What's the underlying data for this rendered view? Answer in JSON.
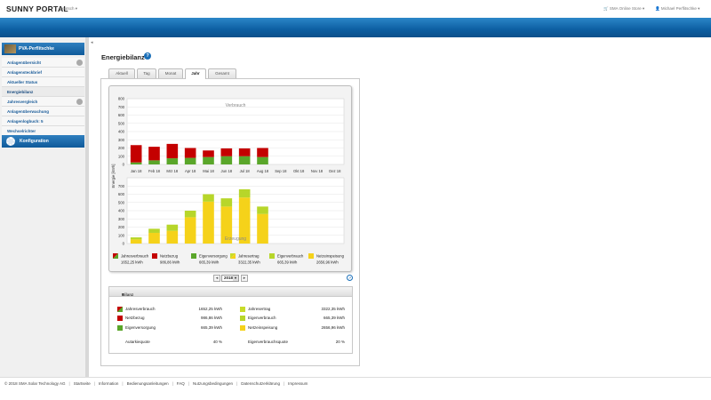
{
  "header": {
    "logo": "SUNNY PORTAL",
    "language": "Deutsch",
    "store_link": "SMA Online Store",
    "user_name": "Michael Perflitschke"
  },
  "sidebar": {
    "plant_name": "PVA-Perflitschke",
    "items": [
      {
        "label": "Anlagenübersicht",
        "gear": true
      },
      {
        "label": "Anlagensteckbrief",
        "gear": false
      },
      {
        "label": "Aktueller Status",
        "gear": false
      },
      {
        "label": "Energiebilanz",
        "gear": false,
        "active": true
      },
      {
        "label": "Jahresvergleich",
        "gear": true
      },
      {
        "label": "Anlagenüberwachung",
        "gear": false
      },
      {
        "label": "Anlagenlogbuch: 5",
        "gear": false
      },
      {
        "label": "Wechselrichter",
        "gear": false
      }
    ],
    "config_label": "Konfiguration"
  },
  "page": {
    "title": "Energiebilanz",
    "tabs": [
      "Aktuell",
      "Tag",
      "Monat",
      "Jahr",
      "Gesamt"
    ],
    "active_tab": "Jahr"
  },
  "year_nav": {
    "year": "2018",
    "prev": "◂",
    "next": "▸"
  },
  "chart_data": {
    "type": "bar",
    "categories": [
      "Jan 18",
      "Feb 18",
      "Mrz 18",
      "Apr 18",
      "Mai 18",
      "Jun 18",
      "Jul 18",
      "Aug 18",
      "Sep 18",
      "Okt 18",
      "Nov 18",
      "Dez 18"
    ],
    "ylabel": "Energie [kWh]",
    "top": {
      "title": "Verbrauch",
      "ylim": [
        0,
        800
      ],
      "yticks": [
        0,
        100,
        200,
        300,
        400,
        500,
        600,
        700,
        800
      ],
      "series": [
        {
          "name": "Eigenversorgung",
          "color": "#5aa62a",
          "values": [
            25,
            50,
            75,
            80,
            90,
            100,
            100,
            90,
            0,
            0,
            0,
            0
          ]
        },
        {
          "name": "Netzbezug",
          "color": "#c40000",
          "values": [
            210,
            165,
            175,
            120,
            80,
            95,
            95,
            110,
            0,
            0,
            0,
            0
          ]
        }
      ]
    },
    "bottom": {
      "title": "Erzeugung",
      "ylim": [
        0,
        800
      ],
      "yticks": [
        0,
        100,
        200,
        300,
        400,
        500,
        600,
        700
      ],
      "series": [
        {
          "name": "Netzeinspeisung",
          "color": "#f5d21a",
          "values": [
            50,
            130,
            155,
            320,
            510,
            450,
            560,
            360,
            0,
            0,
            0,
            0
          ]
        },
        {
          "name": "Eigenverbrauch",
          "color": "#b7d62a",
          "values": [
            25,
            50,
            75,
            80,
            90,
            100,
            100,
            90,
            0,
            0,
            0,
            0
          ]
        }
      ]
    },
    "legend": [
      {
        "label": "Jahresverbrauch",
        "value": "1652,25 kWh",
        "color": "#c40000",
        "color2": "#5aa62a"
      },
      {
        "label": "Netzbezug",
        "value": "986,86 kWh",
        "color": "#c40000"
      },
      {
        "label": "Eigenversorgung",
        "value": "665,39 kWh",
        "color": "#5aa62a"
      },
      {
        "label": "Jahresertrag",
        "value": "3322,35 kWh",
        "color": "#c8dc2a",
        "color2": "#f5d21a"
      },
      {
        "label": "Eigenverbrauch",
        "value": "665,39 kWh",
        "color": "#b7d62a"
      },
      {
        "label": "Netzeinspeisung",
        "value": "2656,96 kWh",
        "color": "#f5d21a"
      }
    ]
  },
  "bilanz": {
    "title": "Bilanz",
    "left": [
      {
        "label": "Jahresverbrauch",
        "value": "1652,25 kWh",
        "color": "#c40000",
        "color2": "#5aa62a"
      },
      {
        "label": "Netzbezug",
        "value": "986,86 kWh",
        "color": "#c40000"
      },
      {
        "label": "Eigenversorgung",
        "value": "665,39 kWh",
        "color": "#5aa62a"
      },
      {
        "label": "Autarkiequote",
        "value": "40 %"
      }
    ],
    "right": [
      {
        "label": "Jahresertrag",
        "value": "3322,35 kWh",
        "color": "#c8dc2a"
      },
      {
        "label": "Eigenverbrauch",
        "value": "665,39 kWh",
        "color": "#b7d62a"
      },
      {
        "label": "Netzeinspeisung",
        "value": "2656,96 kWh",
        "color": "#f5d21a"
      },
      {
        "label": "Eigenverbrauchsquote",
        "value": "20 %"
      }
    ]
  },
  "footer": {
    "copyright": "© 2018 SMA Solar Technology AG",
    "links": [
      "Startseite",
      "Information",
      "Bedienungsanleitungen",
      "FAQ",
      "Nutzungsbedingungen",
      "Datenschutzerklärung",
      "Impressum"
    ]
  }
}
